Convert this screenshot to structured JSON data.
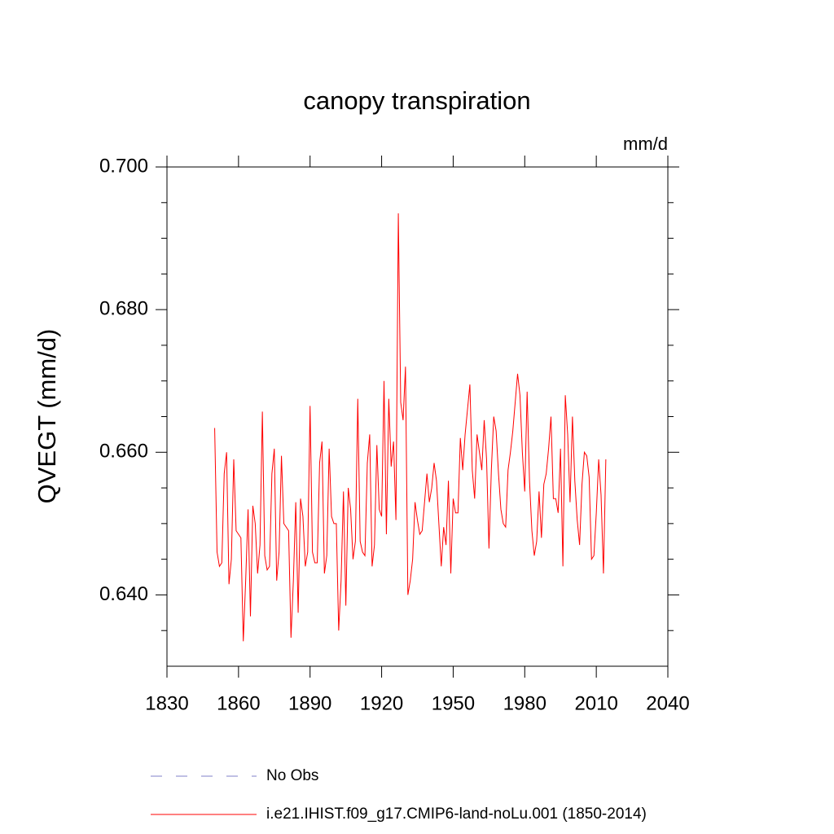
{
  "chart_data": {
    "type": "line",
    "title": "canopy transpiration",
    "units": "mm/d",
    "y_label": "QVEGT  (mm/d)",
    "x": [
      1850,
      1851,
      1852,
      1853,
      1854,
      1855,
      1856,
      1857,
      1858,
      1859,
      1860,
      1861,
      1862,
      1863,
      1864,
      1865,
      1866,
      1867,
      1868,
      1869,
      1870,
      1871,
      1872,
      1873,
      1874,
      1875,
      1876,
      1877,
      1878,
      1879,
      1880,
      1881,
      1882,
      1883,
      1884,
      1885,
      1886,
      1887,
      1888,
      1889,
      1890,
      1891,
      1892,
      1893,
      1894,
      1895,
      1896,
      1897,
      1898,
      1899,
      1900,
      1901,
      1902,
      1903,
      1904,
      1905,
      1906,
      1907,
      1908,
      1909,
      1910,
      1911,
      1912,
      1913,
      1914,
      1915,
      1916,
      1917,
      1918,
      1919,
      1920,
      1921,
      1922,
      1923,
      1924,
      1925,
      1926,
      1927,
      1928,
      1929,
      1930,
      1931,
      1932,
      1933,
      1934,
      1935,
      1936,
      1937,
      1938,
      1939,
      1940,
      1941,
      1942,
      1943,
      1944,
      1945,
      1946,
      1947,
      1948,
      1949,
      1950,
      1951,
      1952,
      1953,
      1954,
      1955,
      1956,
      1957,
      1958,
      1959,
      1960,
      1961,
      1962,
      1963,
      1964,
      1965,
      1966,
      1967,
      1968,
      1969,
      1970,
      1971,
      1972,
      1973,
      1974,
      1975,
      1976,
      1977,
      1978,
      1979,
      1980,
      1981,
      1982,
      1983,
      1984,
      1985,
      1986,
      1987,
      1988,
      1989,
      1990,
      1991,
      1992,
      1993,
      1994,
      1995,
      1996,
      1997,
      1998,
      1999,
      2000,
      2001,
      2002,
      2003,
      2004,
      2005,
      2006,
      2007,
      2008,
      2009,
      2010,
      2011,
      2012,
      2013,
      2014
    ],
    "series": [
      {
        "name": "i.e21.IHIST.f09_g17.CMIP6-land-noLu.001 (1850-2014)",
        "color": "#ff0000",
        "values": [
          0.6634,
          0.646,
          0.644,
          0.6445,
          0.657,
          0.66,
          0.6415,
          0.645,
          0.659,
          0.649,
          0.6485,
          0.648,
          0.6335,
          0.642,
          0.652,
          0.637,
          0.6525,
          0.65,
          0.643,
          0.647,
          0.6657,
          0.6455,
          0.6435,
          0.644,
          0.657,
          0.6605,
          0.642,
          0.646,
          0.6595,
          0.65,
          0.6495,
          0.649,
          0.634,
          0.642,
          0.653,
          0.6375,
          0.6535,
          0.651,
          0.644,
          0.646,
          0.6665,
          0.646,
          0.6445,
          0.6445,
          0.6585,
          0.6615,
          0.643,
          0.6455,
          0.6605,
          0.651,
          0.65,
          0.65,
          0.635,
          0.642,
          0.6545,
          0.6385,
          0.655,
          0.652,
          0.645,
          0.6475,
          0.6675,
          0.6475,
          0.646,
          0.6455,
          0.6585,
          0.6625,
          0.644,
          0.647,
          0.661,
          0.652,
          0.651,
          0.67,
          0.6485,
          0.6675,
          0.658,
          0.6615,
          0.6505,
          0.6935,
          0.667,
          0.6645,
          0.672,
          0.64,
          0.642,
          0.645,
          0.653,
          0.6505,
          0.6485,
          0.649,
          0.653,
          0.657,
          0.653,
          0.655,
          0.6585,
          0.656,
          0.65,
          0.644,
          0.6495,
          0.647,
          0.656,
          0.643,
          0.6535,
          0.6515,
          0.6515,
          0.662,
          0.6575,
          0.6625,
          0.666,
          0.6695,
          0.6575,
          0.6535,
          0.6625,
          0.66,
          0.6575,
          0.6645,
          0.659,
          0.6465,
          0.6575,
          0.665,
          0.663,
          0.657,
          0.652,
          0.65,
          0.6495,
          0.6575,
          0.66,
          0.663,
          0.667,
          0.671,
          0.668,
          0.66,
          0.6545,
          0.6685,
          0.656,
          0.649,
          0.6455,
          0.6475,
          0.6545,
          0.648,
          0.6555,
          0.657,
          0.6605,
          0.665,
          0.6535,
          0.6535,
          0.6515,
          0.6605,
          0.644,
          0.668,
          0.6625,
          0.653,
          0.665,
          0.656,
          0.6505,
          0.647,
          0.6555,
          0.66,
          0.6595,
          0.6565,
          0.645,
          0.6455,
          0.6515,
          0.659,
          0.654,
          0.643,
          0.659
        ]
      }
    ],
    "legend_only": [
      {
        "name": "No Obs",
        "color": "#8080c8",
        "style": "dashed"
      }
    ],
    "xlim": [
      1830,
      2040
    ],
    "xticks": [
      1830,
      1860,
      1890,
      1920,
      1950,
      1980,
      2010,
      2040
    ],
    "ylim": [
      0.63,
      0.7
    ],
    "yticks": [
      {
        "value": 0.64,
        "label": "0.640"
      },
      {
        "value": 0.66,
        "label": "0.660"
      },
      {
        "value": 0.68,
        "label": "0.680"
      },
      {
        "value": 0.7,
        "label": "0.700"
      }
    ],
    "yminorticks": [
      0.635,
      0.645,
      0.65,
      0.655,
      0.665,
      0.67,
      0.675,
      0.685,
      0.69,
      0.695
    ]
  }
}
